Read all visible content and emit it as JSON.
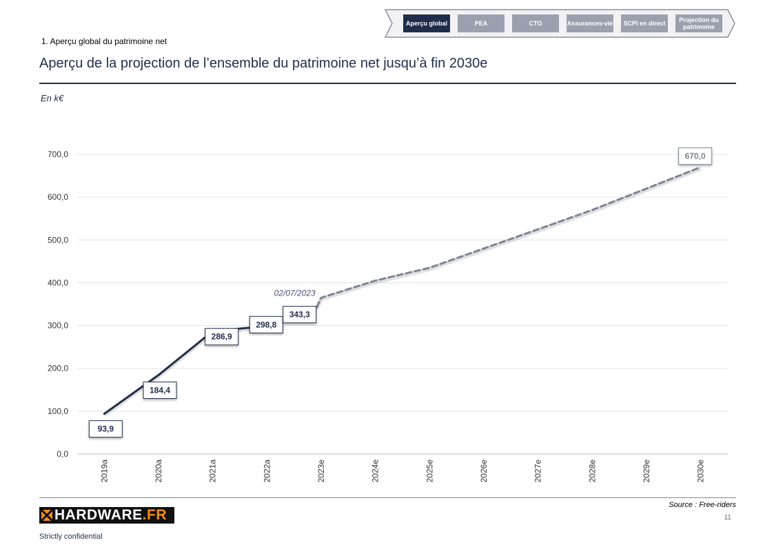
{
  "nav": {
    "items": [
      {
        "label": "Aperçu global",
        "active": true
      },
      {
        "label": "PEA",
        "active": false
      },
      {
        "label": "CTO",
        "active": false
      },
      {
        "label": "Assurances-vie",
        "active": false
      },
      {
        "label": "SCPI en direct",
        "active": false
      },
      {
        "label": "Projection du patrimoine",
        "active": false
      }
    ]
  },
  "header": {
    "breadcrumb": "1. Aperçu global du patrimoine net",
    "title": "Aperçu de la projection de l’ensemble du patrimoine net jusqu’à fin 2030e",
    "unit": "En k€"
  },
  "chart_data": {
    "type": "line",
    "categories": [
      "2019a",
      "2020a",
      "2021a",
      "2022a",
      "2023e",
      "2024e",
      "2025e",
      "2026e",
      "2027e",
      "2028e",
      "2029e",
      "2030e"
    ],
    "series": [
      {
        "style": "actual",
        "color": "#1f2d4d",
        "x": [
          "2019a",
          "2020a",
          "2021a",
          "2022a",
          "02/07/2023"
        ],
        "values": [
          93.9,
          184.4,
          286.9,
          298.8,
          343.3
        ]
      },
      {
        "style": "projection",
        "color": "#7d8296",
        "x": [
          "02/07/2023",
          "2023e",
          "2024e",
          "2025e",
          "2026e",
          "2027e",
          "2028e",
          "2029e",
          "2030e"
        ],
        "values": [
          343.3,
          365,
          405,
          435,
          480,
          525,
          570,
          620,
          670.0
        ]
      }
    ],
    "data_labels": [
      {
        "x": "2019a",
        "text": "93,9"
      },
      {
        "x": "2020a",
        "text": "184,4"
      },
      {
        "x": "2021a",
        "text": "286,9"
      },
      {
        "x": "2022a",
        "text": "298,8"
      },
      {
        "x": "02/07/2023",
        "text": "343,3"
      },
      {
        "x": "2030e",
        "text": "670,0"
      }
    ],
    "annotation": "02/07/2023",
    "yticks": [
      "0,0",
      "100,0",
      "200,0",
      "300,0",
      "400,0",
      "500,0",
      "600,0",
      "700,0"
    ],
    "ylim": [
      0,
      700
    ],
    "grid": true,
    "legend": "none"
  },
  "footer": {
    "source": "Source : Free-riders",
    "page_number": "11",
    "logo_main": "HARDWARE",
    "logo_suffix": ".FR",
    "confidential": "Strictly confidential"
  }
}
